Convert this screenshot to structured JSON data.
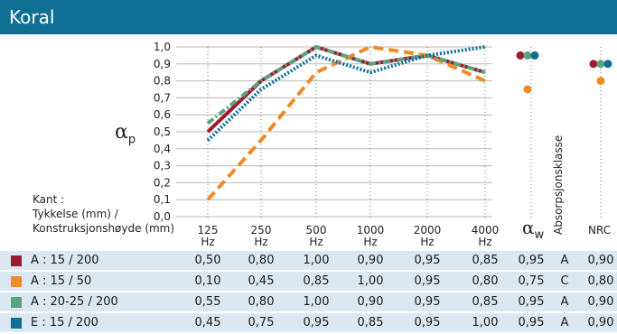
{
  "title": "Koral",
  "chart_data": {
    "type": "line",
    "categories": [
      "125",
      "250",
      "500",
      "1000",
      "2000",
      "4000"
    ],
    "category_unit": "Hz",
    "ylabel": "α",
    "ylabel_sub": "p",
    "ylim": [
      0,
      1
    ],
    "yticks": [
      "0,0",
      "0,1",
      "0,2",
      "0,3",
      "0,4",
      "0,5",
      "0,6",
      "0,7",
      "0,8",
      "0,9",
      "1,0"
    ],
    "grid": "vertical dotted",
    "series": [
      {
        "id": "A1",
        "color": "#9b1b30",
        "dash": "solid",
        "values": [
          0.5,
          0.8,
          1.0,
          0.9,
          0.95,
          0.85
        ],
        "aw": 0.95,
        "nrc": 0.9
      },
      {
        "id": "A2",
        "color": "#f08a24",
        "dash": "dashed",
        "values": [
          0.1,
          0.45,
          0.85,
          1.0,
          0.95,
          0.8
        ],
        "aw": 0.75,
        "nrc": 0.8
      },
      {
        "id": "A3",
        "color": "#5aa47f",
        "dash": "dashdot",
        "values": [
          0.55,
          0.8,
          1.0,
          0.9,
          0.95,
          0.85
        ],
        "aw": 0.95,
        "nrc": 0.9
      },
      {
        "id": "E",
        "color": "#0f6f94",
        "dash": "dotted",
        "values": [
          0.45,
          0.75,
          0.95,
          0.85,
          0.95,
          1.0
        ],
        "aw": 0.95,
        "nrc": 0.9
      }
    ]
  },
  "headers": {
    "kant": "Kant :",
    "tykkelse": "Tykkelse (mm) /",
    "konstruksjon": "Konstruksjonshøyde (mm)",
    "alpha_w_symbol": "α",
    "alpha_w_sub": "w",
    "absorpsjonsklasse": "Absorpsjonsklasse",
    "nrc": "NRC"
  },
  "rows": [
    {
      "color": "#9b1b30",
      "label": "A : 15 / 200",
      "values": [
        "0,50",
        "0,80",
        "1,00",
        "0,90",
        "0,95",
        "0,85"
      ],
      "aw": "0,95",
      "klasse": "A",
      "nrc": "0,90"
    },
    {
      "color": "#f08a24",
      "label": "A : 15 / 50",
      "values": [
        "0,10",
        "0,45",
        "0,85",
        "1,00",
        "0,95",
        "0,80"
      ],
      "aw": "0,75",
      "klasse": "C",
      "nrc": "0,80"
    },
    {
      "color": "#5aa47f",
      "label": "A : 20-25 / 200",
      "values": [
        "0,55",
        "0,80",
        "1,00",
        "0,90",
        "0,95",
        "0,85"
      ],
      "aw": "0,95",
      "klasse": "A",
      "nrc": "0,90"
    },
    {
      "color": "#0f6f94",
      "label": "E : 15 / 200",
      "values": [
        "0,45",
        "0,75",
        "0,95",
        "0,85",
        "0,95",
        "1,00"
      ],
      "aw": "0,95",
      "klasse": "A",
      "nrc": "0,90"
    }
  ]
}
